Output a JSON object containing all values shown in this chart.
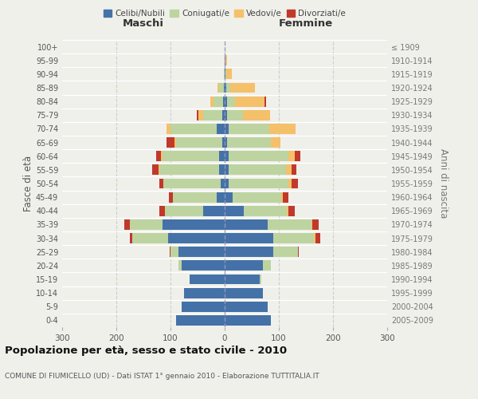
{
  "age_groups": [
    "0-4",
    "5-9",
    "10-14",
    "15-19",
    "20-24",
    "25-29",
    "30-34",
    "35-39",
    "40-44",
    "45-49",
    "50-54",
    "55-59",
    "60-64",
    "65-69",
    "70-74",
    "75-79",
    "80-84",
    "85-89",
    "90-94",
    "95-99",
    "100+"
  ],
  "birth_years": [
    "2005-2009",
    "2000-2004",
    "1995-1999",
    "1990-1994",
    "1985-1989",
    "1980-1984",
    "1975-1979",
    "1970-1974",
    "1965-1969",
    "1960-1964",
    "1955-1959",
    "1950-1954",
    "1945-1949",
    "1940-1944",
    "1935-1939",
    "1930-1934",
    "1925-1929",
    "1920-1924",
    "1915-1919",
    "1910-1914",
    "≤ 1909"
  ],
  "male": {
    "celibi": [
      90,
      80,
      75,
      65,
      80,
      85,
      105,
      115,
      40,
      15,
      8,
      10,
      10,
      5,
      15,
      4,
      3,
      2,
      0,
      0,
      0
    ],
    "coniugati": [
      0,
      0,
      0,
      0,
      5,
      15,
      65,
      60,
      70,
      80,
      105,
      110,
      105,
      85,
      85,
      35,
      18,
      8,
      2,
      0,
      0
    ],
    "vedovi": [
      0,
      0,
      0,
      0,
      0,
      0,
      0,
      0,
      0,
      0,
      0,
      2,
      2,
      3,
      8,
      10,
      5,
      3,
      0,
      0,
      0
    ],
    "divorziati": [
      0,
      0,
      0,
      0,
      0,
      2,
      5,
      10,
      10,
      8,
      8,
      12,
      10,
      15,
      0,
      2,
      0,
      0,
      0,
      0,
      0
    ]
  },
  "female": {
    "nubili": [
      85,
      80,
      70,
      65,
      70,
      90,
      90,
      80,
      35,
      15,
      8,
      8,
      8,
      5,
      8,
      4,
      4,
      3,
      1,
      1,
      0
    ],
    "coniugate": [
      0,
      0,
      0,
      3,
      15,
      45,
      75,
      80,
      80,
      90,
      110,
      105,
      110,
      80,
      75,
      30,
      15,
      8,
      2,
      1,
      0
    ],
    "vedove": [
      0,
      0,
      0,
      0,
      0,
      0,
      2,
      2,
      2,
      2,
      5,
      10,
      12,
      18,
      48,
      50,
      55,
      45,
      10,
      2,
      0
    ],
    "divorziate": [
      0,
      0,
      0,
      0,
      0,
      2,
      10,
      12,
      12,
      10,
      12,
      10,
      10,
      0,
      0,
      0,
      2,
      0,
      0,
      0,
      0
    ]
  },
  "colors": {
    "celibi": "#4472a8",
    "coniugati": "#bdd4a0",
    "vedovi": "#f5c06a",
    "divorziati": "#c0392b"
  },
  "xlim": 300,
  "title": "Popolazione per età, sesso e stato civile - 2010",
  "subtitle": "COMUNE DI FIUMICELLO (UD) - Dati ISTAT 1° gennaio 2010 - Elaborazione TUTTITALIA.IT",
  "ylabel_left": "Fasce di età",
  "ylabel_right": "Anni di nascita",
  "xlabel_left": "Maschi",
  "xlabel_right": "Femmine",
  "bg_color": "#f0f0eb",
  "grid_color": "#cccccc"
}
